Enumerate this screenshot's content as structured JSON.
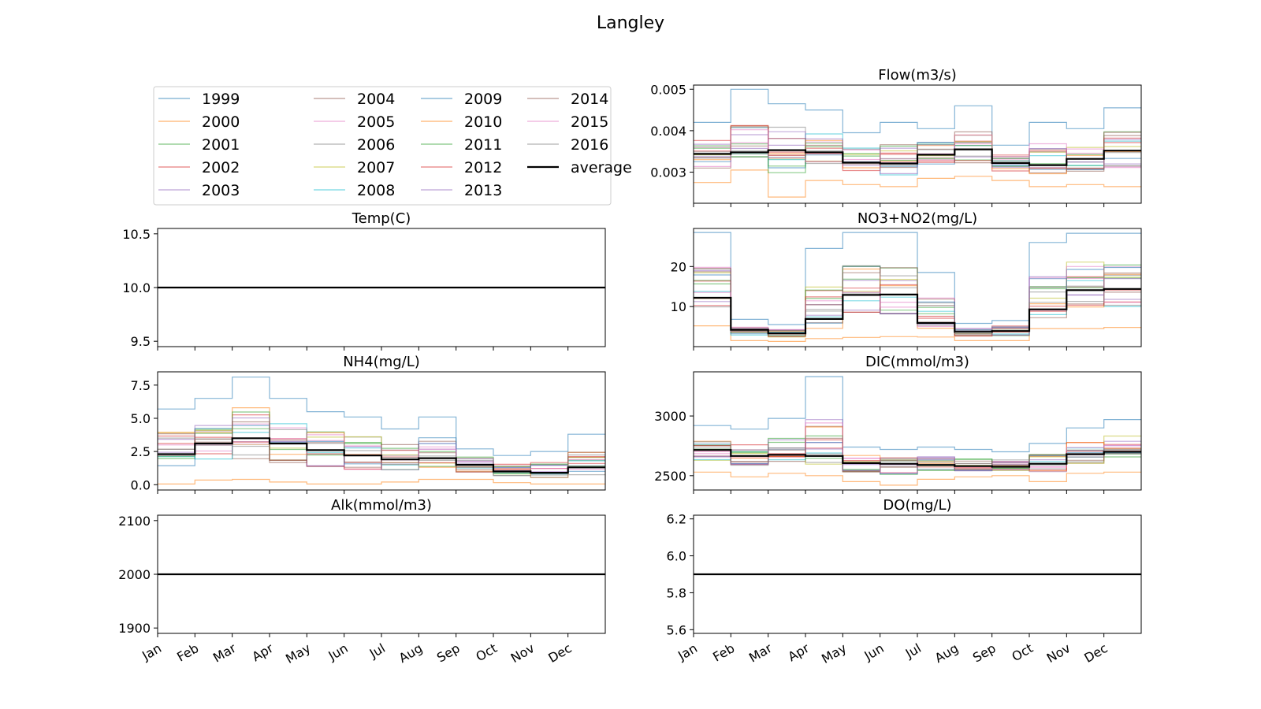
{
  "figure": {
    "title": "Langley"
  },
  "legend": {
    "items": [
      "1999",
      "2000",
      "2001",
      "2002",
      "2003",
      "2004",
      "2005",
      "2006",
      "2007",
      "2008",
      "2009",
      "2010",
      "2011",
      "2012",
      "2013",
      "2014",
      "2015",
      "2016",
      "average"
    ],
    "colors": [
      "#1f77b4",
      "#ff7f0e",
      "#2ca02c",
      "#d62728",
      "#9467bd",
      "#8c564b",
      "#e377c2",
      "#7f7f7f",
      "#bcbd22",
      "#17becf",
      "#1f77b4",
      "#ff7f0e",
      "#2ca02c",
      "#d62728",
      "#9467bd",
      "#8c564b",
      "#e377c2",
      "#7f7f7f",
      "#000000"
    ],
    "placement": "top-left panel"
  },
  "months": [
    "Jan",
    "Feb",
    "Mar",
    "Apr",
    "May",
    "Jun",
    "Jul",
    "Aug",
    "Sep",
    "Oct",
    "Nov",
    "Dec"
  ],
  "chart_data": [
    {
      "type": "line",
      "step": true,
      "title": "Flow(m3/s)",
      "ylim": [
        0.00225,
        0.0051
      ],
      "yticks": [
        0.003,
        0.004,
        0.005
      ],
      "ytick_labels": [
        "0.003",
        "0.004",
        "0.005"
      ],
      "categories": [
        "Jan",
        "Feb",
        "Mar",
        "Apr",
        "May",
        "Jun",
        "Jul",
        "Aug",
        "Sep",
        "Oct",
        "Nov",
        "Dec"
      ],
      "average": [
        0.00344,
        0.00348,
        0.00353,
        0.00348,
        0.00323,
        0.00321,
        0.00342,
        0.00355,
        0.00322,
        0.00317,
        0.00332,
        0.00352
      ],
      "series_ranges": [
        [
          0.00275,
          0.0042
        ],
        [
          0.00305,
          0.005
        ],
        [
          0.0024,
          0.00465
        ],
        [
          0.0028,
          0.0045
        ],
        [
          0.0027,
          0.00395
        ],
        [
          0.00265,
          0.0042
        ],
        [
          0.00285,
          0.00405
        ],
        [
          0.0029,
          0.0046
        ],
        [
          0.0028,
          0.00365
        ],
        [
          0.00265,
          0.0042
        ],
        [
          0.0027,
          0.00405
        ],
        [
          0.00265,
          0.00455
        ]
      ]
    },
    {
      "type": "line",
      "step": true,
      "title": "Temp(C)",
      "ylim": [
        9.45,
        10.55
      ],
      "yticks": [
        9.5,
        10.0,
        10.5
      ],
      "ytick_labels": [
        "9.5",
        "10.0",
        "10.5"
      ],
      "categories": [
        "Jan",
        "Feb",
        "Mar",
        "Apr",
        "May",
        "Jun",
        "Jul",
        "Aug",
        "Sep",
        "Oct",
        "Nov",
        "Dec"
      ],
      "average": [
        10.0,
        10.0,
        10.0,
        10.0,
        10.0,
        10.0,
        10.0,
        10.0,
        10.0,
        10.0,
        10.0,
        10.0
      ],
      "series_ranges": [
        [
          10.0,
          10.0
        ],
        [
          10.0,
          10.0
        ],
        [
          10.0,
          10.0
        ],
        [
          10.0,
          10.0
        ],
        [
          10.0,
          10.0
        ],
        [
          10.0,
          10.0
        ],
        [
          10.0,
          10.0
        ],
        [
          10.0,
          10.0
        ],
        [
          10.0,
          10.0
        ],
        [
          10.0,
          10.0
        ],
        [
          10.0,
          10.0
        ],
        [
          10.0,
          10.0
        ]
      ]
    },
    {
      "type": "line",
      "step": true,
      "title": "NO3+NO2(mg/L)",
      "ylim": [
        0,
        29.5
      ],
      "yticks": [
        10,
        20
      ],
      "ytick_labels": [
        "10",
        "20"
      ],
      "categories": [
        "Jan",
        "Feb",
        "Mar",
        "Apr",
        "May",
        "Jun",
        "Jul",
        "Aug",
        "Sep",
        "Oct",
        "Nov",
        "Dec"
      ],
      "average": [
        12.2,
        4.2,
        3.3,
        6.9,
        12.9,
        13.0,
        5.9,
        3.7,
        3.9,
        9.3,
        14.1,
        14.4
      ],
      "series_ranges": [
        [
          5.2,
          28.5
        ],
        [
          1.5,
          6.8
        ],
        [
          1.3,
          5.5
        ],
        [
          2.0,
          24.5
        ],
        [
          2.3,
          28.5
        ],
        [
          2.5,
          28.5
        ],
        [
          2.4,
          18.5
        ],
        [
          1.5,
          5.8
        ],
        [
          1.5,
          6.5
        ],
        [
          4.5,
          26.0
        ],
        [
          4.5,
          28.3
        ],
        [
          4.8,
          28.3
        ]
      ]
    },
    {
      "type": "line",
      "step": true,
      "title": "NH4(mg/L)",
      "ylim": [
        -0.4,
        8.5
      ],
      "yticks": [
        0.0,
        2.5,
        5.0,
        7.5
      ],
      "ytick_labels": [
        "0.0",
        "2.5",
        "5.0",
        "7.5"
      ],
      "categories": [
        "Jan",
        "Feb",
        "Mar",
        "Apr",
        "May",
        "Jun",
        "Jul",
        "Aug",
        "Sep",
        "Oct",
        "Nov",
        "Dec"
      ],
      "average": [
        2.3,
        3.1,
        3.5,
        3.1,
        2.6,
        2.2,
        1.9,
        2.0,
        1.5,
        1.0,
        0.9,
        1.3
      ],
      "series_ranges": [
        [
          0.05,
          5.7
        ],
        [
          0.35,
          6.5
        ],
        [
          0.4,
          8.1
        ],
        [
          0.2,
          6.5
        ],
        [
          0.05,
          5.5
        ],
        [
          0.05,
          5.1
        ],
        [
          0.2,
          4.2
        ],
        [
          0.4,
          5.1
        ],
        [
          0.4,
          2.7
        ],
        [
          0.15,
          2.2
        ],
        [
          0.05,
          2.5
        ],
        [
          0.05,
          3.8
        ]
      ]
    },
    {
      "type": "line",
      "step": true,
      "title": "DIC(mmol/m3)",
      "ylim": [
        2380,
        3370
      ],
      "yticks": [
        2500,
        3000
      ],
      "ytick_labels": [
        "2500",
        "3000"
      ],
      "categories": [
        "Jan",
        "Feb",
        "Mar",
        "Apr",
        "May",
        "Jun",
        "Jul",
        "Aug",
        "Sep",
        "Oct",
        "Nov",
        "Dec"
      ],
      "average": [
        2715,
        2665,
        2675,
        2665,
        2605,
        2600,
        2590,
        2580,
        2575,
        2600,
        2680,
        2700
      ],
      "series_ranges": [
        [
          2530,
          2920
        ],
        [
          2490,
          2890
        ],
        [
          2520,
          2980
        ],
        [
          2500,
          3330
        ],
        [
          2450,
          2740
        ],
        [
          2420,
          2720
        ],
        [
          2470,
          2740
        ],
        [
          2490,
          2720
        ],
        [
          2500,
          2700
        ],
        [
          2450,
          2770
        ],
        [
          2520,
          2900
        ],
        [
          2530,
          2970
        ]
      ]
    },
    {
      "type": "line",
      "step": true,
      "title": "Alk(mmol/m3)",
      "ylim": [
        1890,
        2110
      ],
      "yticks": [
        1900,
        2000,
        2100
      ],
      "ytick_labels": [
        "1900",
        "2000",
        "2100"
      ],
      "categories": [
        "Jan",
        "Feb",
        "Mar",
        "Apr",
        "May",
        "Jun",
        "Jul",
        "Aug",
        "Sep",
        "Oct",
        "Nov",
        "Dec"
      ],
      "average": [
        2000,
        2000,
        2000,
        2000,
        2000,
        2000,
        2000,
        2000,
        2000,
        2000,
        2000,
        2000
      ],
      "series_ranges": [
        [
          2000,
          2000
        ],
        [
          2000,
          2000
        ],
        [
          2000,
          2000
        ],
        [
          2000,
          2000
        ],
        [
          2000,
          2000
        ],
        [
          2000,
          2000
        ],
        [
          2000,
          2000
        ],
        [
          2000,
          2000
        ],
        [
          2000,
          2000
        ],
        [
          2000,
          2000
        ],
        [
          2000,
          2000
        ],
        [
          2000,
          2000
        ]
      ]
    },
    {
      "type": "line",
      "step": true,
      "title": "DO(mg/L)",
      "ylim": [
        5.58,
        6.22
      ],
      "yticks": [
        5.6,
        5.8,
        6.0,
        6.2
      ],
      "ytick_labels": [
        "5.6",
        "5.8",
        "6.0",
        "6.2"
      ],
      "categories": [
        "Jan",
        "Feb",
        "Mar",
        "Apr",
        "May",
        "Jun",
        "Jul",
        "Aug",
        "Sep",
        "Oct",
        "Nov",
        "Dec"
      ],
      "average": [
        5.9,
        5.9,
        5.9,
        5.9,
        5.9,
        5.9,
        5.9,
        5.9,
        5.9,
        5.9,
        5.9,
        5.9
      ],
      "series_ranges": [
        [
          5.9,
          5.9
        ],
        [
          5.9,
          5.9
        ],
        [
          5.9,
          5.9
        ],
        [
          5.9,
          5.9
        ],
        [
          5.9,
          5.9
        ],
        [
          5.9,
          5.9
        ],
        [
          5.9,
          5.9
        ],
        [
          5.9,
          5.9
        ],
        [
          5.9,
          5.9
        ],
        [
          5.9,
          5.9
        ],
        [
          5.9,
          5.9
        ],
        [
          5.9,
          5.9
        ]
      ]
    }
  ]
}
